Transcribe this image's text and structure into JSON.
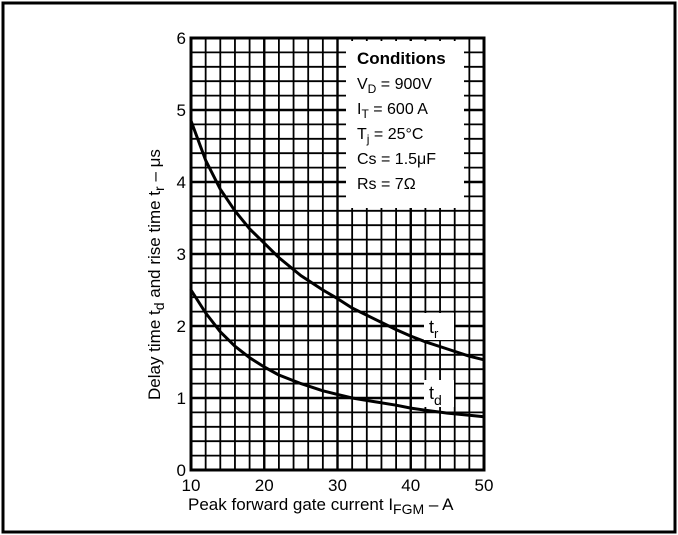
{
  "chart_data": {
    "type": "line",
    "xlabel_main": "Peak forward gate current I",
    "xlabel_sub": "FGM",
    "xlabel_unit": " – A",
    "ylabel_main": "Delay time t",
    "ylabel_sub1": "d",
    "ylabel_mid": " and rise time t",
    "ylabel_sub2": "r",
    "ylabel_unit": " – μs",
    "xlim": [
      10,
      50
    ],
    "ylim": [
      0,
      6
    ],
    "x_ticks": [
      "10",
      "20",
      "30",
      "40",
      "50"
    ],
    "y_ticks": [
      "0",
      "1",
      "2",
      "3",
      "4",
      "5",
      "6"
    ],
    "grid": true,
    "legend_title": "Conditions",
    "conditions": [
      {
        "main": "V",
        "sub": "D",
        "rest": " = 900V"
      },
      {
        "main": "I",
        "sub": "T",
        "rest": " = 600 A"
      },
      {
        "main": "T",
        "sub": "j",
        "rest": " = 25°C"
      },
      {
        "main": "Cs",
        "sub": "",
        "rest": " = 1.5μF"
      },
      {
        "main": "Rs",
        "sub": "",
        "rest": " = 7Ω"
      }
    ],
    "series": [
      {
        "name_main": "t",
        "name_sub": "r",
        "x": [
          10,
          12,
          14,
          16,
          18,
          20,
          22,
          25,
          28,
          30,
          32,
          35,
          38,
          40,
          42,
          45,
          48,
          50
        ],
        "y": [
          4.85,
          4.3,
          3.9,
          3.6,
          3.35,
          3.15,
          2.95,
          2.7,
          2.5,
          2.38,
          2.25,
          2.1,
          1.95,
          1.86,
          1.78,
          1.68,
          1.58,
          1.53
        ]
      },
      {
        "name_main": "t",
        "name_sub": "d",
        "x": [
          10,
          12,
          14,
          16,
          18,
          20,
          22,
          25,
          28,
          30,
          32,
          35,
          38,
          40,
          42,
          45,
          48,
          50
        ],
        "y": [
          2.5,
          2.18,
          1.92,
          1.72,
          1.56,
          1.43,
          1.32,
          1.2,
          1.1,
          1.05,
          1.0,
          0.95,
          0.9,
          0.86,
          0.83,
          0.79,
          0.76,
          0.74
        ]
      }
    ]
  }
}
